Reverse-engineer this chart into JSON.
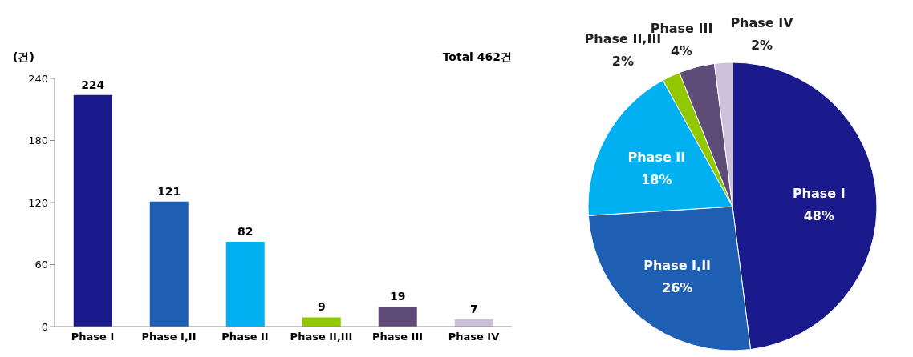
{
  "chart_data": [
    {
      "type": "bar",
      "ylabel": "(건)",
      "annotations": [
        "Total 462건"
      ],
      "categories": [
        "Phase I",
        "Phase I,II",
        "Phase II",
        "Phase II,III",
        "Phase III",
        "Phase IV"
      ],
      "values": [
        224,
        121,
        82,
        9,
        19,
        7
      ],
      "colors": [
        "#1a1a8c",
        "#1e5fb4",
        "#00b0f0",
        "#92c800",
        "#5f4b78",
        "#ccc0da"
      ],
      "ylim": [
        0,
        240
      ],
      "yticks": [
        0,
        60,
        120,
        180,
        240
      ],
      "data_labels": true
    },
    {
      "type": "pie",
      "categories": [
        "Phase I",
        "Phase I,II",
        "Phase II",
        "Phase II,III",
        "Phase III",
        "Phase IV"
      ],
      "values": [
        48,
        26,
        18,
        2,
        4,
        2
      ],
      "value_labels": [
        "48%",
        "26%",
        "18%",
        "2%",
        "4%",
        "2%"
      ],
      "colors": [
        "#1a1a8c",
        "#1e5fb4",
        "#00b0f0",
        "#92c800",
        "#5f4b78",
        "#ccc0da"
      ]
    }
  ]
}
